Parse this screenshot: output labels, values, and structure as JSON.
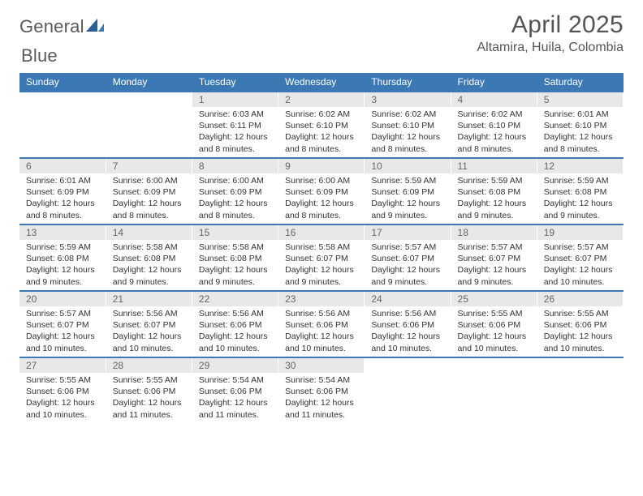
{
  "brand": {
    "text1": "General",
    "text2": "Blue"
  },
  "title": "April 2025",
  "location": "Altamira, Huila, Colombia",
  "colors": {
    "header_bg": "#3c78b4",
    "header_fg": "#ffffff",
    "daynum_bg": "#e8e8e8",
    "row_divider": "#3c78b4",
    "page_bg": "#ffffff",
    "text": "#333333"
  },
  "day_headers": [
    "Sunday",
    "Monday",
    "Tuesday",
    "Wednesday",
    "Thursday",
    "Friday",
    "Saturday"
  ],
  "weeks": [
    [
      {
        "n": "",
        "sunrise": "",
        "sunset": "",
        "daylight": ""
      },
      {
        "n": "",
        "sunrise": "",
        "sunset": "",
        "daylight": ""
      },
      {
        "n": "1",
        "sunrise": "Sunrise: 6:03 AM",
        "sunset": "Sunset: 6:11 PM",
        "daylight": "Daylight: 12 hours and 8 minutes."
      },
      {
        "n": "2",
        "sunrise": "Sunrise: 6:02 AM",
        "sunset": "Sunset: 6:10 PM",
        "daylight": "Daylight: 12 hours and 8 minutes."
      },
      {
        "n": "3",
        "sunrise": "Sunrise: 6:02 AM",
        "sunset": "Sunset: 6:10 PM",
        "daylight": "Daylight: 12 hours and 8 minutes."
      },
      {
        "n": "4",
        "sunrise": "Sunrise: 6:02 AM",
        "sunset": "Sunset: 6:10 PM",
        "daylight": "Daylight: 12 hours and 8 minutes."
      },
      {
        "n": "5",
        "sunrise": "Sunrise: 6:01 AM",
        "sunset": "Sunset: 6:10 PM",
        "daylight": "Daylight: 12 hours and 8 minutes."
      }
    ],
    [
      {
        "n": "6",
        "sunrise": "Sunrise: 6:01 AM",
        "sunset": "Sunset: 6:09 PM",
        "daylight": "Daylight: 12 hours and 8 minutes."
      },
      {
        "n": "7",
        "sunrise": "Sunrise: 6:00 AM",
        "sunset": "Sunset: 6:09 PM",
        "daylight": "Daylight: 12 hours and 8 minutes."
      },
      {
        "n": "8",
        "sunrise": "Sunrise: 6:00 AM",
        "sunset": "Sunset: 6:09 PM",
        "daylight": "Daylight: 12 hours and 8 minutes."
      },
      {
        "n": "9",
        "sunrise": "Sunrise: 6:00 AM",
        "sunset": "Sunset: 6:09 PM",
        "daylight": "Daylight: 12 hours and 8 minutes."
      },
      {
        "n": "10",
        "sunrise": "Sunrise: 5:59 AM",
        "sunset": "Sunset: 6:09 PM",
        "daylight": "Daylight: 12 hours and 9 minutes."
      },
      {
        "n": "11",
        "sunrise": "Sunrise: 5:59 AM",
        "sunset": "Sunset: 6:08 PM",
        "daylight": "Daylight: 12 hours and 9 minutes."
      },
      {
        "n": "12",
        "sunrise": "Sunrise: 5:59 AM",
        "sunset": "Sunset: 6:08 PM",
        "daylight": "Daylight: 12 hours and 9 minutes."
      }
    ],
    [
      {
        "n": "13",
        "sunrise": "Sunrise: 5:59 AM",
        "sunset": "Sunset: 6:08 PM",
        "daylight": "Daylight: 12 hours and 9 minutes."
      },
      {
        "n": "14",
        "sunrise": "Sunrise: 5:58 AM",
        "sunset": "Sunset: 6:08 PM",
        "daylight": "Daylight: 12 hours and 9 minutes."
      },
      {
        "n": "15",
        "sunrise": "Sunrise: 5:58 AM",
        "sunset": "Sunset: 6:08 PM",
        "daylight": "Daylight: 12 hours and 9 minutes."
      },
      {
        "n": "16",
        "sunrise": "Sunrise: 5:58 AM",
        "sunset": "Sunset: 6:07 PM",
        "daylight": "Daylight: 12 hours and 9 minutes."
      },
      {
        "n": "17",
        "sunrise": "Sunrise: 5:57 AM",
        "sunset": "Sunset: 6:07 PM",
        "daylight": "Daylight: 12 hours and 9 minutes."
      },
      {
        "n": "18",
        "sunrise": "Sunrise: 5:57 AM",
        "sunset": "Sunset: 6:07 PM",
        "daylight": "Daylight: 12 hours and 9 minutes."
      },
      {
        "n": "19",
        "sunrise": "Sunrise: 5:57 AM",
        "sunset": "Sunset: 6:07 PM",
        "daylight": "Daylight: 12 hours and 10 minutes."
      }
    ],
    [
      {
        "n": "20",
        "sunrise": "Sunrise: 5:57 AM",
        "sunset": "Sunset: 6:07 PM",
        "daylight": "Daylight: 12 hours and 10 minutes."
      },
      {
        "n": "21",
        "sunrise": "Sunrise: 5:56 AM",
        "sunset": "Sunset: 6:07 PM",
        "daylight": "Daylight: 12 hours and 10 minutes."
      },
      {
        "n": "22",
        "sunrise": "Sunrise: 5:56 AM",
        "sunset": "Sunset: 6:06 PM",
        "daylight": "Daylight: 12 hours and 10 minutes."
      },
      {
        "n": "23",
        "sunrise": "Sunrise: 5:56 AM",
        "sunset": "Sunset: 6:06 PM",
        "daylight": "Daylight: 12 hours and 10 minutes."
      },
      {
        "n": "24",
        "sunrise": "Sunrise: 5:56 AM",
        "sunset": "Sunset: 6:06 PM",
        "daylight": "Daylight: 12 hours and 10 minutes."
      },
      {
        "n": "25",
        "sunrise": "Sunrise: 5:55 AM",
        "sunset": "Sunset: 6:06 PM",
        "daylight": "Daylight: 12 hours and 10 minutes."
      },
      {
        "n": "26",
        "sunrise": "Sunrise: 5:55 AM",
        "sunset": "Sunset: 6:06 PM",
        "daylight": "Daylight: 12 hours and 10 minutes."
      }
    ],
    [
      {
        "n": "27",
        "sunrise": "Sunrise: 5:55 AM",
        "sunset": "Sunset: 6:06 PM",
        "daylight": "Daylight: 12 hours and 10 minutes."
      },
      {
        "n": "28",
        "sunrise": "Sunrise: 5:55 AM",
        "sunset": "Sunset: 6:06 PM",
        "daylight": "Daylight: 12 hours and 11 minutes."
      },
      {
        "n": "29",
        "sunrise": "Sunrise: 5:54 AM",
        "sunset": "Sunset: 6:06 PM",
        "daylight": "Daylight: 12 hours and 11 minutes."
      },
      {
        "n": "30",
        "sunrise": "Sunrise: 5:54 AM",
        "sunset": "Sunset: 6:06 PM",
        "daylight": "Daylight: 12 hours and 11 minutes."
      },
      {
        "n": "",
        "sunrise": "",
        "sunset": "",
        "daylight": ""
      },
      {
        "n": "",
        "sunrise": "",
        "sunset": "",
        "daylight": ""
      },
      {
        "n": "",
        "sunrise": "",
        "sunset": "",
        "daylight": ""
      }
    ]
  ]
}
